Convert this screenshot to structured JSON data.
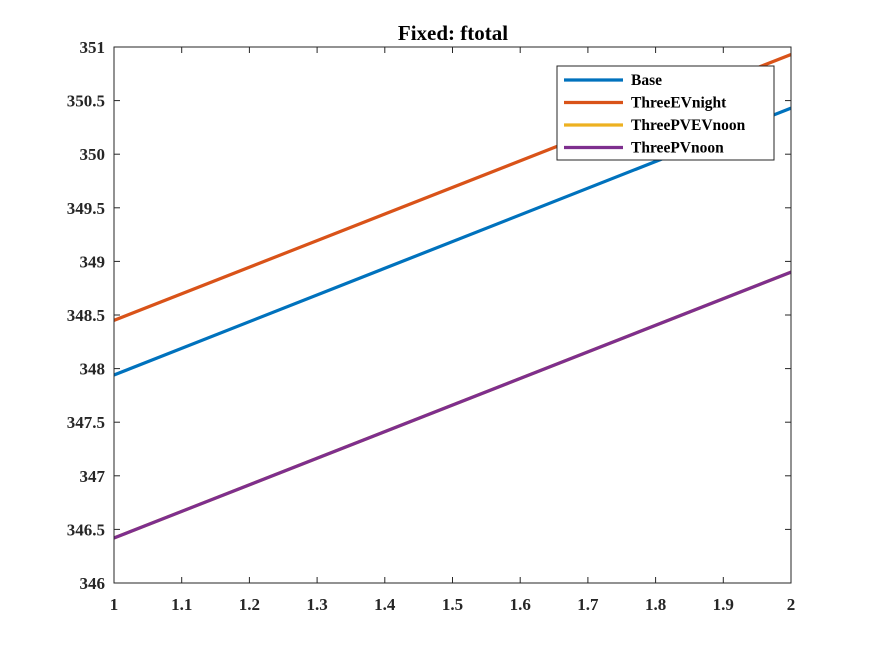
{
  "chart_data": {
    "type": "line",
    "title": "Fixed: ftotal",
    "xlabel": "",
    "ylabel": "",
    "xlim": [
      1,
      2
    ],
    "ylim": [
      346,
      351
    ],
    "xticks": [
      1,
      1.1,
      1.2,
      1.3,
      1.4,
      1.5,
      1.6,
      1.7,
      1.8,
      1.9,
      2
    ],
    "xtick_labels": [
      "1",
      "1.1",
      "1.2",
      "1.3",
      "1.4",
      "1.5",
      "1.6",
      "1.7",
      "1.8",
      "1.9",
      "2"
    ],
    "yticks": [
      346,
      346.5,
      347,
      347.5,
      348,
      348.5,
      349,
      349.5,
      350,
      350.5,
      351
    ],
    "ytick_labels": [
      "346",
      "346.5",
      "347",
      "347.5",
      "348",
      "348.5",
      "349",
      "349.5",
      "350",
      "350.5",
      "351"
    ],
    "grid": false,
    "legend_position": "top-right",
    "series": [
      {
        "name": "Base",
        "color": "#0072BD",
        "x": [
          1,
          2
        ],
        "y": [
          347.94,
          350.43
        ]
      },
      {
        "name": "ThreeEVnight",
        "color": "#D95319",
        "x": [
          1,
          2
        ],
        "y": [
          348.45,
          350.93
        ]
      },
      {
        "name": "ThreePVEVnoon",
        "color": "#EDB120",
        "x": [
          1,
          2
        ],
        "y": [
          346.42,
          348.9
        ]
      },
      {
        "name": "ThreePVnoon",
        "color": "#7E2F8E",
        "x": [
          1,
          2
        ],
        "y": [
          346.42,
          348.9
        ]
      }
    ]
  }
}
